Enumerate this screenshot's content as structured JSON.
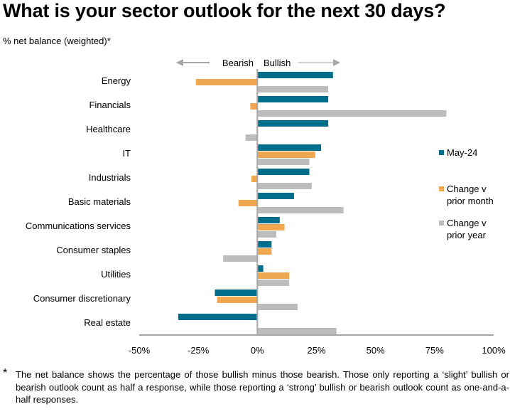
{
  "colors": {
    "may24": "#006D8A",
    "change_month": "#F0A850",
    "change_year": "#BDBDBD",
    "axis": "#A6A6A6",
    "arrow": "#A6A6A6"
  },
  "chart_data": {
    "type": "bar",
    "orientation": "horizontal",
    "title": "What is your sector outlook for the next 30 days?",
    "subtitle": "% net balance (weighted)*",
    "direction_labels": {
      "left": "Bearish",
      "right": "Bullish"
    },
    "xlabel": "",
    "ylabel": "",
    "xlim": [
      -50,
      100
    ],
    "x_ticks": [
      -50,
      -25,
      0,
      25,
      50,
      75,
      100
    ],
    "x_tick_labels": [
      "-50%",
      "-25%",
      "0%",
      "25%",
      "50%",
      "75%",
      "100%"
    ],
    "grid": false,
    "legend_position": "right",
    "categories": [
      "Energy",
      "Financials",
      "Healthcare",
      "IT",
      "Industrials",
      "Basic materials",
      "Communications services",
      "Consumer staples",
      "Utilities",
      "Consumer discretionary",
      "Real estate"
    ],
    "series": [
      {
        "key": "may24",
        "name": "May-24",
        "values": [
          32,
          30,
          30,
          27,
          22,
          15.5,
          9.5,
          6,
          2.5,
          -18,
          -33.5
        ]
      },
      {
        "key": "change_month",
        "name": "Change v prior month",
        "values": [
          -26,
          -3,
          0,
          24.5,
          -2.5,
          -8,
          11.5,
          6,
          13.5,
          -17,
          0
        ]
      },
      {
        "key": "change_year",
        "name": "Change v prior year",
        "values": [
          30,
          80,
          -5,
          22,
          23,
          36.5,
          8,
          -14.5,
          13.5,
          17,
          33.5
        ]
      }
    ]
  },
  "legend": {
    "items": [
      {
        "key": "may24",
        "lines": [
          "May-24"
        ]
      },
      {
        "key": "change_month",
        "lines": [
          "Change v",
          "prior month"
        ]
      },
      {
        "key": "change_year",
        "lines": [
          "Change v",
          "prior year"
        ]
      }
    ]
  },
  "footnote": {
    "marker": "*",
    "text": "The net balance shows the percentage of those bullish minus those bearish. Those only reporting a ‘slight’ bullish or bearish outlook count as half a response, while those reporting a ‘strong’ bullish or bearish outlook count as one-and-a-half responses."
  }
}
